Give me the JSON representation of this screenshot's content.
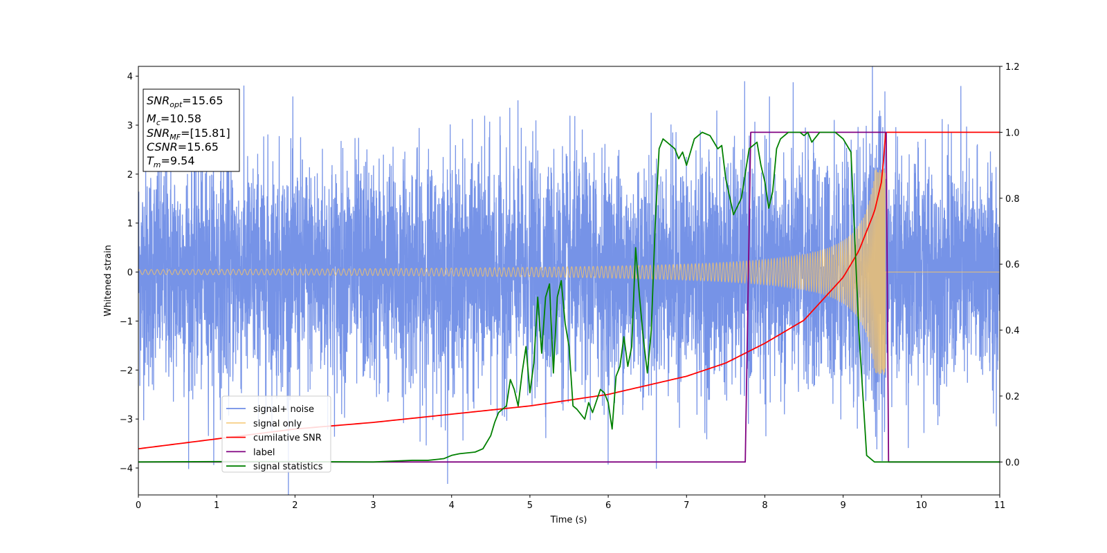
{
  "chart_data": {
    "type": "line",
    "xlabel": "Time (s)",
    "ylabel": "Whitened strain",
    "xlim": [
      0,
      11
    ],
    "ylim": [
      -4.55,
      4.2
    ],
    "y2lim": [
      -0.1,
      1.2
    ],
    "x_ticks": [
      "0",
      "1",
      "2",
      "3",
      "4",
      "5",
      "6",
      "7",
      "8",
      "9",
      "10",
      "11"
    ],
    "y_ticks": [
      "−4",
      "−3",
      "−2",
      "−1",
      "0",
      "1",
      "2",
      "3",
      "4"
    ],
    "y2_ticks": [
      "0.0",
      "0.2",
      "0.4",
      "0.6",
      "0.8",
      "1.0",
      "1.2"
    ],
    "legend_placement": "lower-left",
    "info_box": {
      "snr_opt": "=15.65",
      "mc": "=10.58",
      "snr_mf": "=[15.81]",
      "csnr": "=15.65",
      "tm": "=9.54"
    },
    "series": [
      {
        "name": "signal+ noise",
        "color": "#6f8de6",
        "axis": "left",
        "description_values": {
          "mean": 0.0,
          "std": 1.0,
          "duration_s": 11
        }
      },
      {
        "name": "signal only",
        "color": "#f5c46a",
        "axis": "left",
        "chirp": {
          "merger_time": 9.54,
          "start_amp": 0.05,
          "peak_amp": 2.1
        }
      },
      {
        "name": "cumilative SNR",
        "color": "#ff0000",
        "axis": "right",
        "x": [
          0,
          1,
          2,
          3,
          4,
          5,
          6,
          7,
          7.5,
          8,
          8.5,
          9,
          9.2,
          9.4,
          9.5,
          9.54,
          11
        ],
        "y": [
          0.04,
          0.07,
          0.1,
          0.12,
          0.145,
          0.17,
          0.205,
          0.26,
          0.3,
          0.36,
          0.43,
          0.56,
          0.64,
          0.76,
          0.86,
          1.0,
          1.0
        ]
      },
      {
        "name": "label",
        "color": "#800080",
        "axis": "right",
        "x": [
          0,
          7.75,
          7.82,
          9.55,
          9.58,
          11
        ],
        "y": [
          0,
          0,
          1,
          1,
          0,
          0
        ]
      },
      {
        "name": "signal statistics",
        "color": "#008000",
        "axis": "right",
        "x": [
          0,
          1,
          2,
          3,
          3.5,
          3.7,
          3.9,
          4.0,
          4.1,
          4.3,
          4.4,
          4.5,
          4.55,
          4.6,
          4.7,
          4.75,
          4.8,
          4.85,
          4.9,
          4.95,
          5.0,
          5.05,
          5.1,
          5.15,
          5.2,
          5.25,
          5.3,
          5.35,
          5.4,
          5.45,
          5.5,
          5.55,
          5.6,
          5.7,
          5.75,
          5.8,
          5.9,
          5.95,
          6.0,
          6.05,
          6.1,
          6.15,
          6.2,
          6.25,
          6.3,
          6.35,
          6.4,
          6.45,
          6.5,
          6.55,
          6.6,
          6.65,
          6.7,
          6.75,
          6.8,
          6.85,
          6.9,
          6.95,
          7.0,
          7.1,
          7.2,
          7.3,
          7.4,
          7.45,
          7.5,
          7.6,
          7.7,
          7.8,
          7.9,
          7.95,
          8.0,
          8.05,
          8.1,
          8.15,
          8.2,
          8.25,
          8.3,
          8.35,
          8.4,
          8.45,
          8.5,
          8.55,
          8.6,
          8.7,
          8.8,
          8.9,
          9.0,
          9.1,
          9.2,
          9.3,
          9.4,
          9.45,
          9.5,
          9.52,
          9.55,
          9.6,
          9.65,
          9.7,
          10,
          11
        ],
        "y": [
          0,
          0.001,
          0.001,
          0.0,
          0.005,
          0.005,
          0.01,
          0.02,
          0.025,
          0.03,
          0.04,
          0.08,
          0.12,
          0.15,
          0.17,
          0.25,
          0.22,
          0.17,
          0.27,
          0.35,
          0.21,
          0.3,
          0.5,
          0.33,
          0.5,
          0.54,
          0.27,
          0.5,
          0.55,
          0.42,
          0.35,
          0.17,
          0.16,
          0.13,
          0.18,
          0.15,
          0.22,
          0.21,
          0.18,
          0.1,
          0.26,
          0.29,
          0.38,
          0.29,
          0.35,
          0.65,
          0.5,
          0.37,
          0.27,
          0.4,
          0.72,
          0.95,
          0.98,
          0.97,
          0.96,
          0.95,
          0.92,
          0.94,
          0.9,
          0.98,
          1.0,
          0.99,
          0.95,
          0.96,
          0.86,
          0.75,
          0.8,
          0.95,
          0.97,
          0.9,
          0.85,
          0.77,
          0.82,
          0.95,
          0.98,
          0.99,
          1.0,
          1.0,
          1.0,
          1.0,
          0.99,
          1.0,
          0.97,
          1.0,
          1.0,
          1.0,
          0.98,
          0.94,
          0.4,
          0.02,
          0.0,
          0.0,
          0.0,
          0.0,
          0.0,
          0.0,
          0.0,
          0.0,
          0.0,
          0.0
        ]
      }
    ]
  }
}
